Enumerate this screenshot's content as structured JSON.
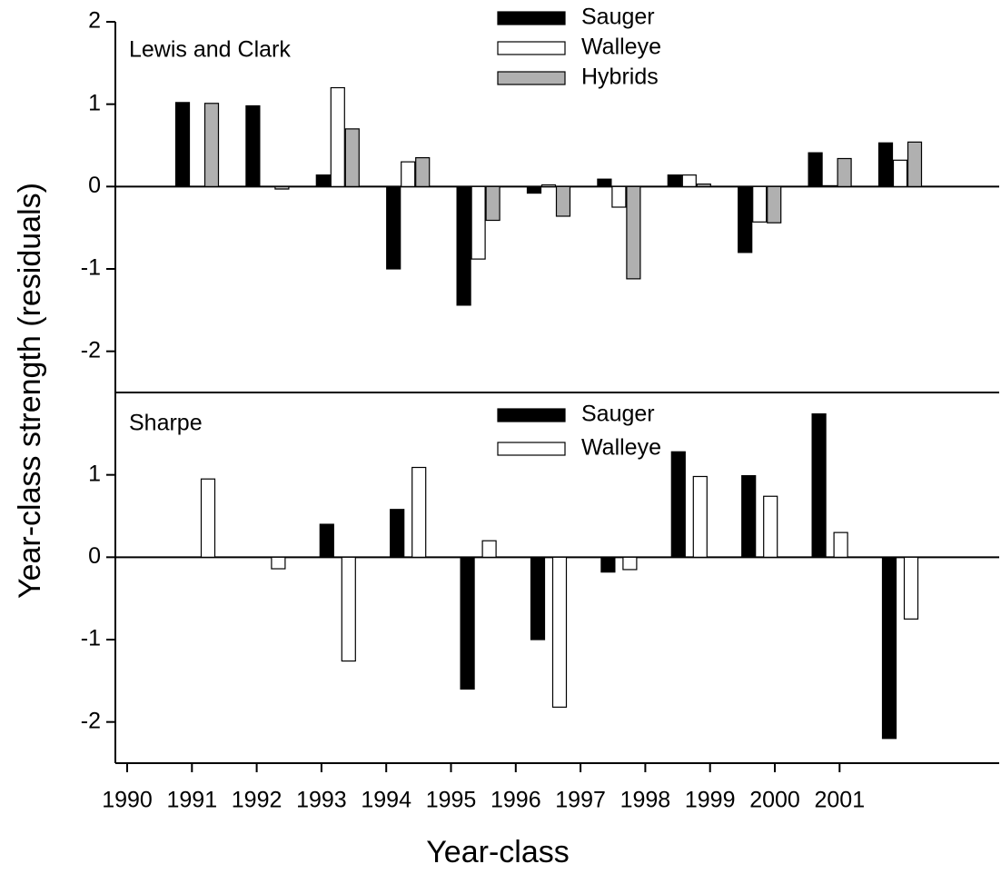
{
  "chart_data": [
    {
      "type": "bar",
      "title": "Lewis and Clark",
      "ylabel": "Year-class strength (residuals)",
      "ylim": [
        -2.5,
        2
      ],
      "yticks": [
        -2,
        -1,
        0,
        1,
        2
      ],
      "series": [
        {
          "name": "Sauger",
          "color": "#000000",
          "values": [
            null,
            1.02,
            0.98,
            0.14,
            -1.0,
            -1.44,
            -0.08,
            0.09,
            0.14,
            -0.8,
            0.41,
            0.53
          ]
        },
        {
          "name": "Walleye",
          "color": "#ffffff",
          "values": [
            null,
            null,
            null,
            1.2,
            0.3,
            -0.88,
            0.02,
            -0.25,
            0.14,
            -0.43,
            0.01,
            0.32
          ]
        },
        {
          "name": "Hybrids",
          "color": "#b0b0b0",
          "values": [
            null,
            1.01,
            -0.03,
            0.7,
            0.35,
            -0.41,
            -0.36,
            -1.12,
            0.03,
            -0.44,
            0.34,
            0.54
          ]
        }
      ]
    },
    {
      "type": "bar",
      "title": "Sharpe",
      "xlabel": "Year-class",
      "categories": [
        "1990",
        "1991",
        "1992",
        "1993",
        "1994",
        "1995",
        "1996",
        "1997",
        "1998",
        "1999",
        "2000",
        "2001"
      ],
      "ylim": [
        -2.5,
        2
      ],
      "yticks": [
        -2,
        -1,
        0,
        1
      ],
      "series": [
        {
          "name": "Sauger",
          "color": "#000000",
          "values": [
            null,
            null,
            null,
            0.4,
            0.58,
            -1.6,
            -1.0,
            -0.18,
            1.28,
            0.99,
            1.74,
            -2.2
          ]
        },
        {
          "name": "Walleye",
          "color": "#ffffff",
          "values": [
            null,
            0.95,
            -0.14,
            -1.26,
            1.09,
            0.2,
            -1.82,
            -0.15,
            0.98,
            0.74,
            0.3,
            -0.75
          ]
        }
      ]
    }
  ]
}
